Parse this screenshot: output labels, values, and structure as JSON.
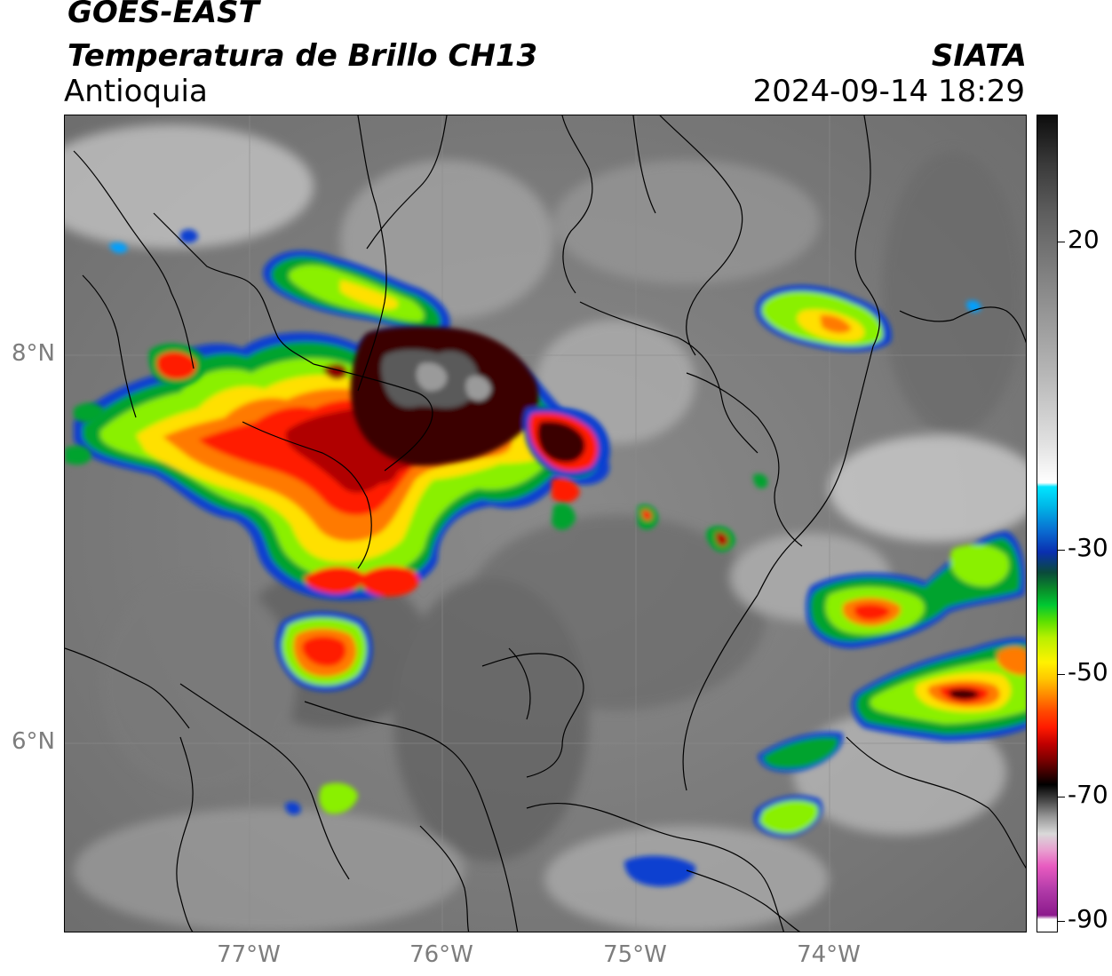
{
  "header": {
    "satellite": "GOES-EAST",
    "product": "Temperatura de Brillo CH13",
    "region": "Antioquia",
    "agency": "SIATA",
    "datetime": "2024-09-14 18:29"
  },
  "map": {
    "lat_labels": [
      "8°N",
      "6°N"
    ],
    "lon_labels": [
      "77°W",
      "76°W",
      "75°W",
      "74°W"
    ]
  },
  "colorbar": {
    "tick_labels": [
      "20",
      "-30",
      "-50",
      "-70",
      "-90"
    ],
    "colors": [
      "#fdfdfd",
      "#1e1e1e",
      "#00e5ff",
      "#0a2fb0",
      "#00a33a",
      "#7cf000",
      "#fff200",
      "#ff8a00",
      "#ff1a00",
      "#8a0000",
      "#000000",
      "#d9d9d9",
      "#e85bc0",
      "#8c1a8c"
    ]
  }
}
